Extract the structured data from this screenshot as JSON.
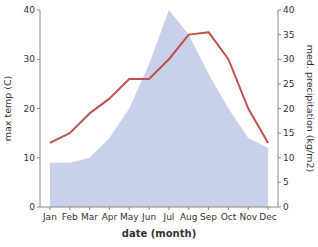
{
  "chart_data": {
    "type": "line",
    "x_label": "date (month)",
    "y_label": "max temp (C)",
    "y2_label": "med. precipitation (kg/m2)",
    "categories": [
      "Jan",
      "Feb",
      "Mar",
      "Apr",
      "May",
      "Jun",
      "Jul",
      "Aug",
      "Sep",
      "Oct",
      "Nov",
      "Dec"
    ],
    "series": [
      {
        "type": "area",
        "axis": "y2",
        "color": "#c8d0ea",
        "values": [
          9,
          9,
          10,
          14,
          20,
          29,
          40,
          35,
          27,
          20,
          14,
          12
        ]
      },
      {
        "type": "line",
        "color": "#c0504d",
        "values": [
          13,
          15,
          19,
          22,
          26,
          26,
          30,
          35,
          35.5,
          30,
          20,
          13
        ]
      }
    ],
    "ylim": [
      0,
      40
    ],
    "yticks": [
      0,
      10,
      20,
      30,
      40
    ],
    "y2lim": [
      0,
      40
    ],
    "y2ticks": [
      0,
      5,
      10,
      15,
      20,
      25,
      30,
      35,
      40
    ],
    "grid": false
  }
}
